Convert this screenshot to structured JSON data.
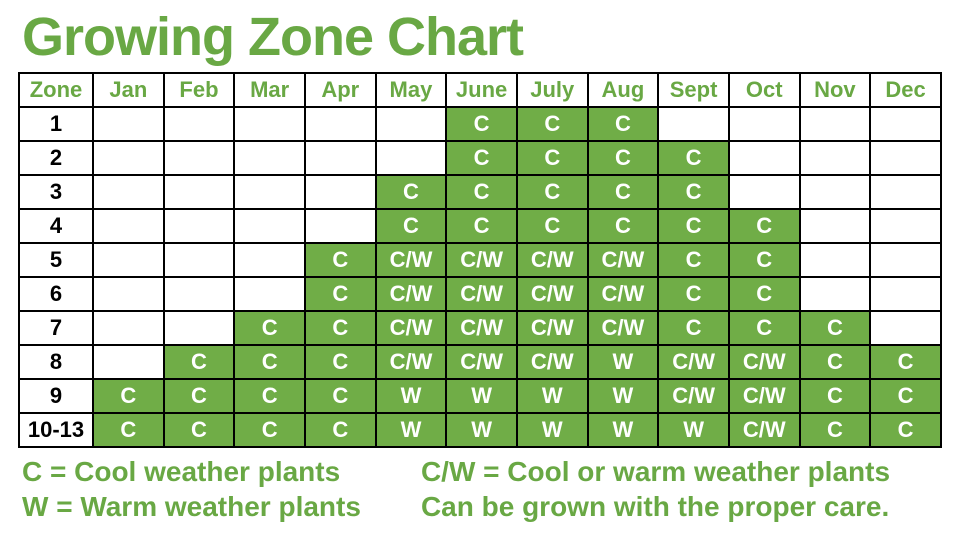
{
  "colors": {
    "brand_green": "#69a844",
    "fill_green": "#70ad47",
    "border": "#000000",
    "cell_text": "#ffffff",
    "header_text": "#69a844",
    "bg": "#ffffff"
  },
  "title": "Growing Zone Chart",
  "chart": {
    "type": "table",
    "header": [
      "Zone",
      "Jan",
      "Feb",
      "Mar",
      "Apr",
      "May",
      "June",
      "July",
      "Aug",
      "Sept",
      "Oct",
      "Nov",
      "Dec"
    ],
    "zones": [
      "1",
      "2",
      "3",
      "4",
      "5",
      "6",
      "7",
      "8",
      "9",
      "10-13"
    ],
    "grid": [
      [
        "",
        "",
        "",
        "",
        "",
        "C",
        "C",
        "C",
        "",
        "",
        "",
        ""
      ],
      [
        "",
        "",
        "",
        "",
        "",
        "C",
        "C",
        "C",
        "C",
        "",
        "",
        ""
      ],
      [
        "",
        "",
        "",
        "",
        "C",
        "C",
        "C",
        "C",
        "C",
        "",
        "",
        ""
      ],
      [
        "",
        "",
        "",
        "",
        "C",
        "C",
        "C",
        "C",
        "C",
        "C",
        "",
        ""
      ],
      [
        "",
        "",
        "",
        "C",
        "C/W",
        "C/W",
        "C/W",
        "C/W",
        "C",
        "C",
        "",
        ""
      ],
      [
        "",
        "",
        "",
        "C",
        "C/W",
        "C/W",
        "C/W",
        "C/W",
        "C",
        "C",
        "",
        ""
      ],
      [
        "",
        "",
        "C",
        "C",
        "C/W",
        "C/W",
        "C/W",
        "C/W",
        "C",
        "C",
        "C",
        ""
      ],
      [
        "",
        "C",
        "C",
        "C",
        "C/W",
        "C/W",
        "C/W",
        "W",
        "C/W",
        "C/W",
        "C",
        "C"
      ],
      [
        "C",
        "C",
        "C",
        "C",
        "W",
        "W",
        "W",
        "W",
        "C/W",
        "C/W",
        "C",
        "C"
      ],
      [
        "C",
        "C",
        "C",
        "C",
        "W",
        "W",
        "W",
        "W",
        "W",
        "C/W",
        "C",
        "C"
      ]
    ]
  },
  "legend": {
    "left": [
      "C = Cool weather plants",
      "W = Warm weather plants"
    ],
    "right": [
      "C/W = Cool or warm weather plants",
      "Can be grown with the proper care."
    ]
  }
}
